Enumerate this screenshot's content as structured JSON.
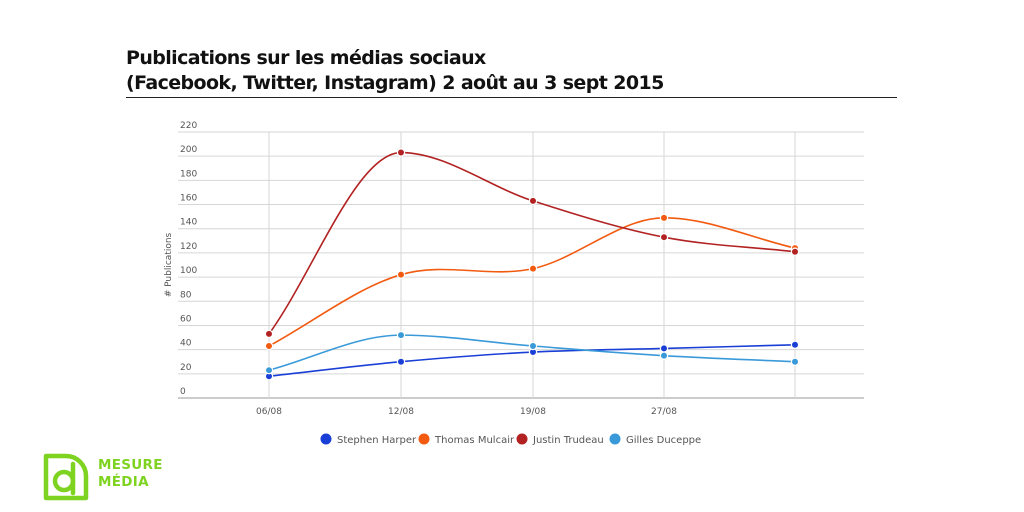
{
  "title": {
    "line1": "Publications sur les médias sociaux",
    "line2": "(Facebook, Twitter, Instagram) 2 août au 3 sept 2015"
  },
  "chart_data": {
    "type": "line",
    "ylabel": "# Publications",
    "xlabel": "",
    "ylim": [
      0,
      220
    ],
    "yticks": [
      0,
      20,
      40,
      60,
      80,
      100,
      120,
      140,
      160,
      180,
      200,
      220
    ],
    "categories": [
      "06/08",
      "12/08",
      "19/08",
      "27/08",
      ""
    ],
    "grid": true,
    "smooth": true,
    "legend_position": "bottom",
    "series": [
      {
        "name": "Stephen Harper",
        "color": "#1a3fd6",
        "values": [
          18,
          30,
          38,
          41,
          44
        ]
      },
      {
        "name": "Thomas Mulcair",
        "color": "#f25a10",
        "values": [
          43,
          102,
          107,
          149,
          124
        ]
      },
      {
        "name": "Justin Trudeau",
        "color": "#b22222",
        "values": [
          53,
          203,
          163,
          133,
          121
        ]
      },
      {
        "name": "Gilles Duceppe",
        "color": "#3a9ad9",
        "values": [
          23,
          52,
          43,
          35,
          30
        ]
      }
    ]
  },
  "logo": {
    "line1": "MESURE",
    "line2": "MÉDIA",
    "color": "#7ed321"
  }
}
